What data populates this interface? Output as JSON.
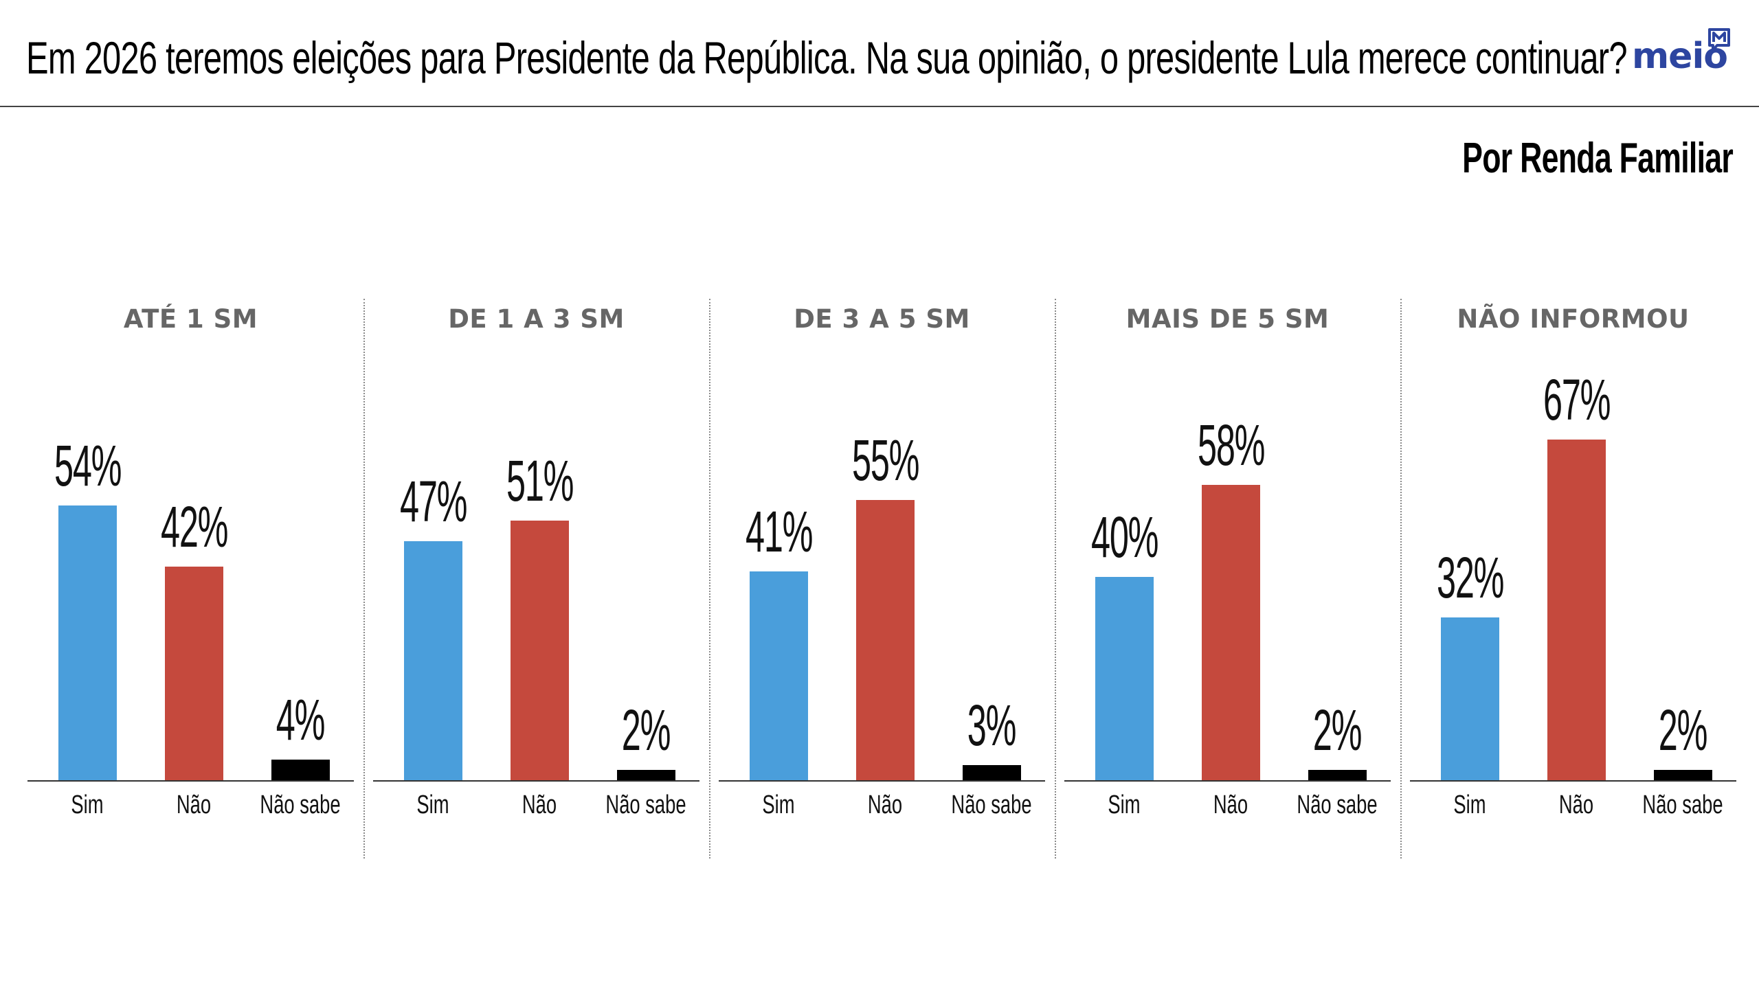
{
  "header": {
    "title": "Em 2026 teremos eleições para Presidente da República. Na sua opinião, o presidente Lula merece continuar?",
    "logo_text": "meio",
    "logo_icon": "speech-bubble-m-icon",
    "subtitle": "Por Renda Familiar"
  },
  "colors": {
    "sim": "#4a9edb",
    "nao": "#c5493d",
    "nao_sabe": "#000000",
    "panel_title": "#666666",
    "logo": "#2d45a0"
  },
  "chart_data": {
    "type": "bar",
    "title": "Em 2026 teremos eleições para Presidente da República. Na sua opinião, o presidente Lula merece continuar?",
    "subtitle": "Por Renda Familiar",
    "categories": [
      "Sim",
      "Não",
      "Não sabe"
    ],
    "ylim": [
      0,
      100
    ],
    "value_suffix": "%",
    "grid": false,
    "panels": [
      {
        "name": "ATÉ 1 SM",
        "values": [
          54,
          42,
          4
        ],
        "labels": [
          "54%",
          "42%",
          "4%"
        ]
      },
      {
        "name": "DE 1 A 3 SM",
        "values": [
          47,
          51,
          2
        ],
        "labels": [
          "47%",
          "51%",
          "2%"
        ]
      },
      {
        "name": "DE 3 A 5 SM",
        "values": [
          41,
          55,
          3
        ],
        "labels": [
          "41%",
          "55%",
          "3%"
        ]
      },
      {
        "name": "MAIS DE 5 SM",
        "values": [
          40,
          58,
          2
        ],
        "labels": [
          "40%",
          "58%",
          "2%"
        ]
      },
      {
        "name": "NÃO INFORMOU",
        "values": [
          32,
          67,
          2
        ],
        "labels": [
          "32%",
          "67%",
          "2%"
        ]
      }
    ]
  }
}
